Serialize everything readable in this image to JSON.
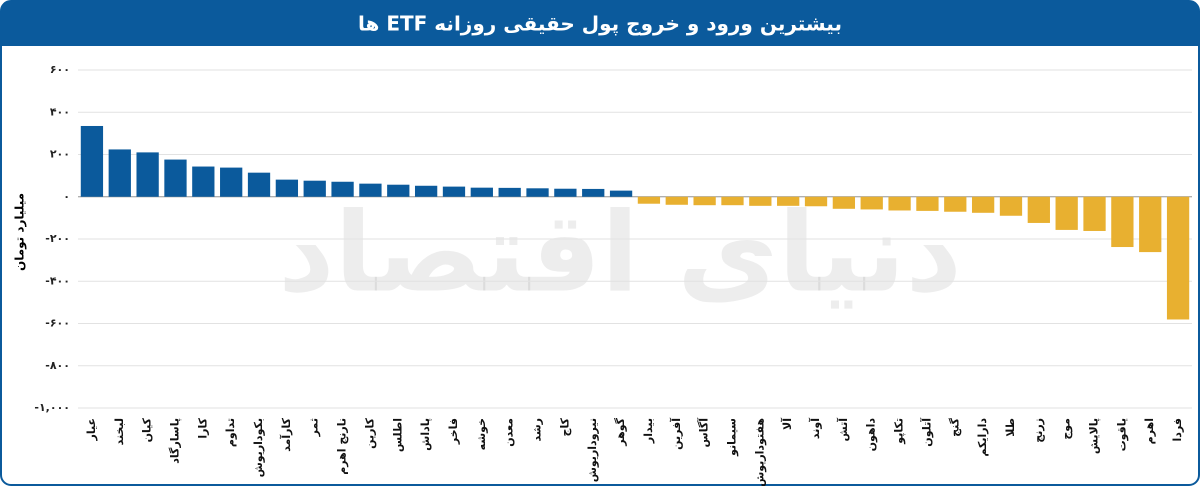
{
  "chart_data": {
    "type": "bar",
    "title": "بیشترین ورود و خروج پول حقیقی روزانه ETF ها",
    "y_label": "میلیارد تومان",
    "watermark": "دنیای اقتصاد",
    "categories": [
      "عیار",
      "لبخند",
      "کیان",
      "پاسارگاد",
      "کارا",
      "تداوم",
      "بکوداریوش",
      "کارآمد",
      "ثمر",
      "نارنج اهرم",
      "کارین",
      "اطلس",
      "پاداش",
      "فاخر",
      "خوشه",
      "معدن",
      "رشد",
      "کاج",
      "نیروداریوش",
      "گوهر",
      "بیدار",
      "آفرین",
      "آگاس",
      "سیمانو",
      "هفتوداریوش",
      "آلا",
      "آوند",
      "آتش",
      "داهون",
      "تکاپو",
      "آتلون",
      "گنج",
      "دارایکم",
      "طلا",
      "زرنج",
      "موج",
      "پالایش",
      "یاقوت",
      "اهرم",
      "فردا"
    ],
    "values": [
      335,
      224,
      210,
      176,
      143,
      138,
      114,
      81,
      76,
      71,
      62,
      57,
      52,
      48,
      43,
      42,
      40,
      38,
      37,
      29,
      -33,
      -38,
      -40,
      -40,
      -43,
      -43,
      -45,
      -57,
      -60,
      -65,
      -67,
      -71,
      -76,
      -90,
      -124,
      -157,
      -162,
      -238,
      -262,
      -581
    ],
    "colors": {
      "positive": "#0b5a9c",
      "negative": "#e8b030"
    },
    "ylim": [
      -1000,
      600
    ],
    "yticks": [
      {
        "value": 600,
        "label": "۶۰۰"
      },
      {
        "value": 400,
        "label": "۴۰۰"
      },
      {
        "value": 200,
        "label": "۲۰۰"
      },
      {
        "value": 0,
        "label": "۰"
      },
      {
        "value": -200,
        "label": "-۲۰۰"
      },
      {
        "value": -400,
        "label": "-۴۰۰"
      },
      {
        "value": -600,
        "label": "-۶۰۰"
      },
      {
        "value": -800,
        "label": "-۸۰۰"
      },
      {
        "value": -1000,
        "label": "-۱,۰۰۰"
      }
    ],
    "grid": true
  }
}
